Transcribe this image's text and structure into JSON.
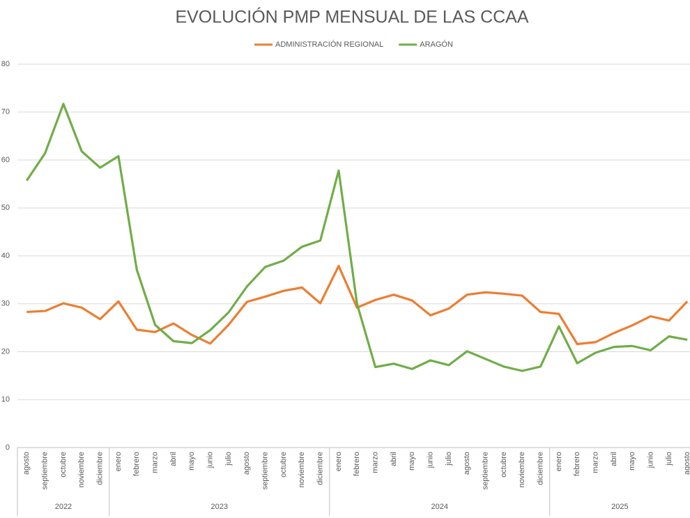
{
  "chart_data": {
    "type": "line",
    "title": "EVOLUCIÓN PMP MENSUAL DE LAS CCAA",
    "category_groups": [
      {
        "label": "2022",
        "categories": [
          "agosto",
          "septiembre",
          "octubre",
          "noviembre",
          "diciembre"
        ]
      },
      {
        "label": "2023",
        "categories": [
          "enero",
          "febrero",
          "marzo",
          "abril",
          "mayo",
          "junio",
          "julio",
          "agosto",
          "septiembre",
          "octubre",
          "noviembre",
          "diciembre"
        ]
      },
      {
        "label": "2024",
        "categories": [
          "enero",
          "febrero",
          "marzo",
          "abril",
          "mayo",
          "junio",
          "julio",
          "agosto",
          "septiembre",
          "octubre",
          "noviembre",
          "diciembre"
        ]
      },
      {
        "label": "2025",
        "categories": [
          "enero",
          "febrero",
          "marzo",
          "abril",
          "mayo",
          "junio",
          "julio",
          "agosto"
        ]
      }
    ],
    "series": [
      {
        "name": "ADMINISTRACIÓN REGIONAL",
        "color": "#ed7d31",
        "values": [
          28.3,
          28.5,
          30.1,
          29.2,
          26.8,
          30.5,
          24.6,
          24.1,
          25.9,
          23.5,
          21.7,
          25.6,
          30.4,
          31.5,
          32.7,
          33.4,
          30.1,
          37.9,
          29.2,
          30.8,
          31.9,
          30.7,
          27.6,
          29.0,
          31.9,
          32.4,
          32.1,
          31.7,
          28.3,
          27.9,
          21.6,
          22.0,
          23.9,
          25.5,
          27.4,
          26.5,
          30.5
        ]
      },
      {
        "name": "ARAGÓN",
        "color": "#70ad47",
        "values": [
          55.7,
          61.4,
          71.7,
          61.8,
          58.4,
          60.8,
          37.1,
          25.6,
          22.2,
          21.8,
          24.5,
          28.2,
          33.6,
          37.7,
          39.0,
          41.9,
          43.2,
          57.8,
          30.0,
          16.8,
          17.5,
          16.4,
          18.2,
          17.2,
          20.1,
          18.5,
          16.9,
          16.0,
          16.9,
          25.3,
          17.6,
          19.8,
          21.0,
          21.2,
          20.3,
          23.2,
          22.5
        ]
      }
    ],
    "ylim": [
      0,
      80
    ],
    "yticks": [
      0,
      10,
      20,
      30,
      40,
      50,
      60,
      70,
      80
    ],
    "grid": true,
    "legend": "top"
  }
}
